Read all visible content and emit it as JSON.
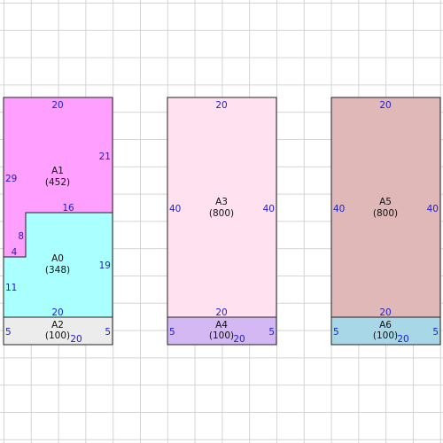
{
  "colors": {
    "A0": "#aaffff",
    "A1": "#ff9fff",
    "A2": "#ececec",
    "A3": "#ffe1f0",
    "A4": "#d4b8f4",
    "A5": "#e0b8b8",
    "A6": "#a8d8e8",
    "dimension_text": "#2020cc",
    "outline": "#222222"
  },
  "regions": [
    {
      "id": "A1",
      "name": "A1",
      "area": "(452)"
    },
    {
      "id": "A0",
      "name": "A0",
      "area": "(348)"
    },
    {
      "id": "A2",
      "name": "A2",
      "area": "(100)"
    },
    {
      "id": "A3",
      "name": "A3",
      "area": "(800)"
    },
    {
      "id": "A4",
      "name": "A4",
      "area": "(100)"
    },
    {
      "id": "A5",
      "name": "A5",
      "area": "(800)"
    },
    {
      "id": "A6",
      "name": "A6",
      "area": "(100)"
    }
  ],
  "dimensions": {
    "g1": [
      "20",
      "21",
      "29",
      "16",
      "8",
      "4",
      "19",
      "11",
      "20",
      "5",
      "5",
      "20"
    ],
    "g2": [
      "20",
      "40",
      "40",
      "20",
      "5",
      "5",
      "20"
    ],
    "g3": [
      "20",
      "40",
      "40",
      "20",
      "5",
      "5",
      "20"
    ]
  }
}
